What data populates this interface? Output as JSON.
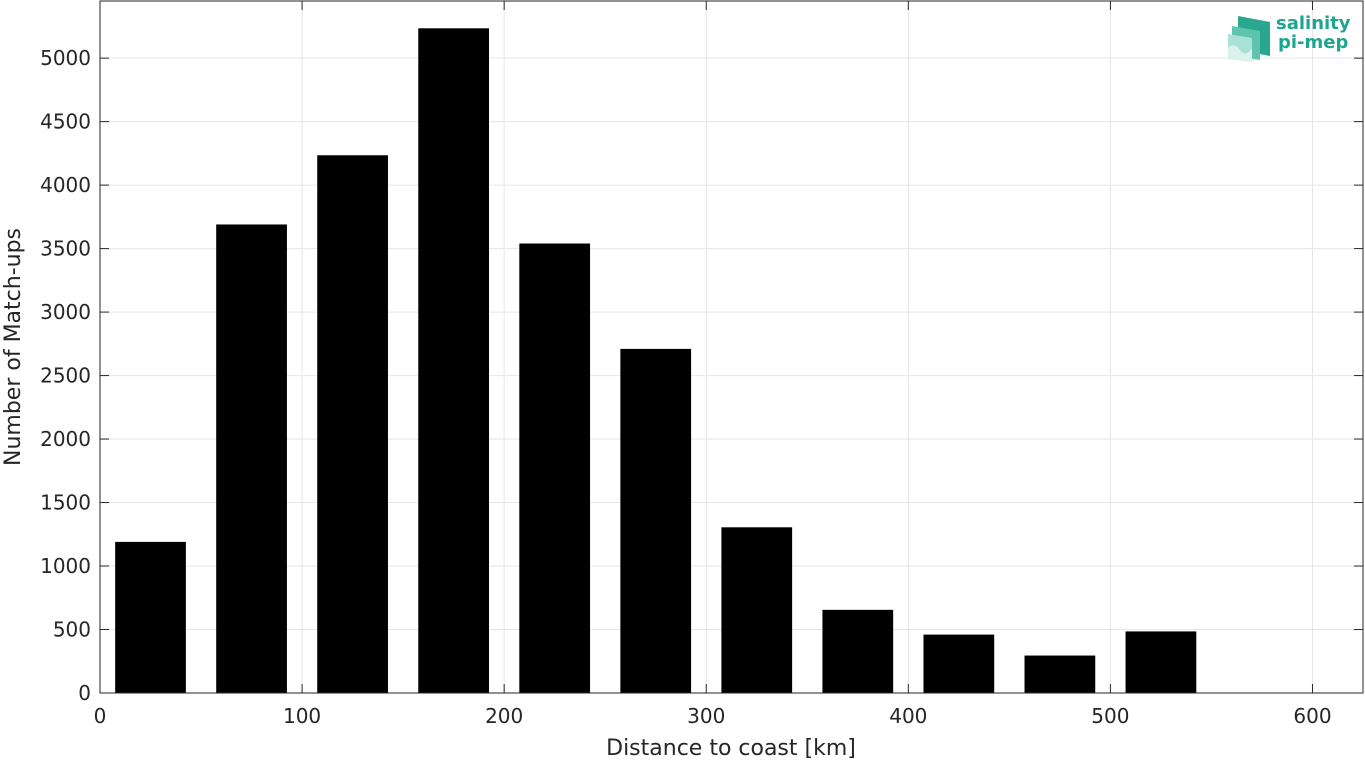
{
  "logo": {
    "line1": "salinity",
    "line2": "pi-mep",
    "color": "#1fa58f"
  },
  "chart_data": {
    "type": "bar",
    "title": "",
    "xlabel": "Distance to coast [km]",
    "ylabel": "Number of Match-ups",
    "xlim": [
      0,
      625
    ],
    "ylim": [
      0,
      5450
    ],
    "xticks": [
      0,
      100,
      200,
      300,
      400,
      500,
      600
    ],
    "yticks": [
      0,
      500,
      1000,
      1500,
      2000,
      2500,
      3000,
      3500,
      4000,
      4500,
      5000
    ],
    "bin_width": 50,
    "bar_width": 35,
    "x": [
      25,
      75,
      125,
      175,
      225,
      275,
      325,
      375,
      425,
      475,
      525,
      575
    ],
    "values": [
      1190,
      3690,
      4235,
      5235,
      3540,
      2710,
      1305,
      655,
      460,
      295,
      485,
      0
    ],
    "bar_color": "#000000",
    "grid": true
  }
}
